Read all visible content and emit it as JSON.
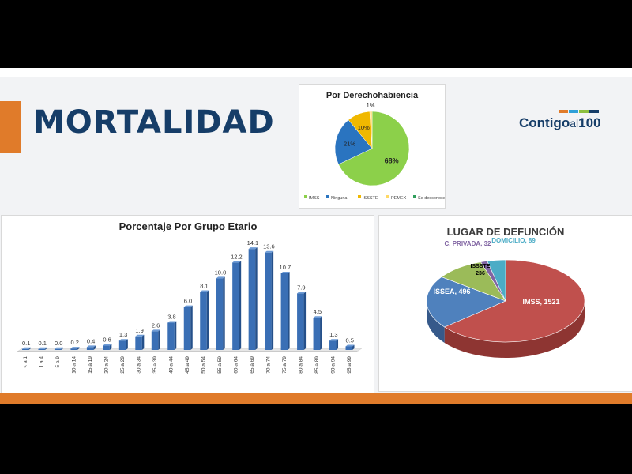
{
  "slide": {
    "title": "MORTALIDAD",
    "logo": {
      "part1": "Contigo",
      "part2": "al",
      "part3": "100",
      "colors": [
        "#e07b2a",
        "#2e9fd8",
        "#8cbf3f",
        "#163d68"
      ]
    }
  },
  "colors": {
    "accent": "#e07b2a",
    "title": "#163d68"
  },
  "chart_data": [
    {
      "type": "pie",
      "title": "Por Derechohabiencia",
      "labels": [
        "IMSS",
        "Ninguna",
        "ISSSTE",
        "PEMEX",
        "Se desconoce"
      ],
      "values": [
        68,
        21,
        10,
        1,
        0
      ],
      "data_labels": [
        "68%",
        "21%",
        "10%",
        "1%",
        ""
      ],
      "colors": [
        "#8cd04a",
        "#2a74c0",
        "#f0b800",
        "#ffd966",
        "#2f9e5c"
      ],
      "legend": "bottom"
    },
    {
      "type": "bar",
      "title": "Porcentaje Por Grupo Etario",
      "categories": [
        "< a 1",
        "1 a 4",
        "5 a 9",
        "10 a 14",
        "15 a 19",
        "20 a 24",
        "25 a 29",
        "30 a 34",
        "35 a 39",
        "40 a 44",
        "45 a 49",
        "50 a 54",
        "55 a 59",
        "60 a 64",
        "65 a 69",
        "70 a 74",
        "75 a 79",
        "80 a 84",
        "85 a 89",
        "90 a 94",
        "95 a 99"
      ],
      "values": [
        0.1,
        0.1,
        0.0,
        0.2,
        0.4,
        0.6,
        1.3,
        1.9,
        2.6,
        3.8,
        6.0,
        8.1,
        10.0,
        12.2,
        14.1,
        13.6,
        10.7,
        7.9,
        4.5,
        1.3,
        0.5
      ],
      "data_labels": [
        "0.1",
        "0.1",
        "0.0",
        "0.2",
        "0.4",
        "0.6",
        "1.3",
        "1.9",
        "2.6",
        "3.8",
        "6.0",
        "8.1",
        "10.0",
        "12.2",
        "14.1",
        "13.6",
        "10.7",
        "7.9",
        "4.5",
        "1.3",
        "0.5"
      ],
      "color": "#3a6fb5",
      "ylim": [
        0,
        15
      ],
      "grid": false
    },
    {
      "type": "pie",
      "title": "LUGAR DE DEFUNCIÓN",
      "labels": [
        "IMSS",
        "ISSEA",
        "ISSSTE",
        "C. PRIVADA",
        "DOMICILIO"
      ],
      "values": [
        1521,
        496,
        236,
        32,
        89
      ],
      "data_labels": [
        "IMSS, 1521",
        "ISSEA, 496",
        "ISSSTE\n236",
        "C. PRIVADA, 32",
        "DOMICILIO, 89"
      ],
      "colors": [
        "#c0504d",
        "#4f81bd",
        "#9bbb59",
        "#8064a2",
        "#4bacc6"
      ],
      "label_colors": [
        "#ffffff",
        "#ffffff",
        "#000000",
        "#8064a2",
        "#4bacc6"
      ],
      "style": "3d"
    }
  ]
}
